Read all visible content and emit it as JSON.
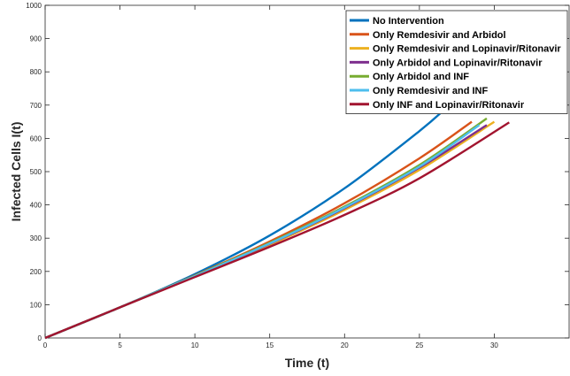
{
  "chart_data": {
    "type": "line",
    "title": "",
    "xlabel": "Time (t)",
    "ylabel": "Infected Cells I(t)",
    "xlim": [
      0,
      35
    ],
    "ylim": [
      0,
      1000
    ],
    "xticks": [
      0,
      5,
      10,
      15,
      20,
      25,
      30
    ],
    "yticks": [
      0,
      100,
      200,
      300,
      400,
      500,
      600,
      700,
      800,
      900,
      1000
    ],
    "grid": false,
    "legend_position": "top-right",
    "series": [
      {
        "name": "No Intervention",
        "color": "#0072BD",
        "x": [
          0,
          5,
          10,
          15,
          20,
          25,
          27
        ],
        "y": [
          0,
          92,
          192,
          308,
          450,
          622,
          700
        ]
      },
      {
        "name": "Only Remdesivir and Arbidol",
        "color": "#D95319",
        "x": [
          0,
          5,
          10,
          15,
          20,
          25,
          28.5
        ],
        "y": [
          0,
          92,
          188,
          290,
          405,
          540,
          650
        ]
      },
      {
        "name": "Only Remdesivir and Lopinavir/Ritonavir",
        "color": "#EDB120",
        "x": [
          0,
          5,
          10,
          15,
          20,
          25,
          30
        ],
        "y": [
          0,
          92,
          185,
          280,
          385,
          505,
          650
        ]
      },
      {
        "name": "Only Arbidol and Lopinavir/Ritonavir",
        "color": "#7E2F8E",
        "x": [
          0,
          5,
          10,
          15,
          20,
          25,
          29.5
        ],
        "y": [
          0,
          92,
          186,
          283,
          390,
          512,
          640
        ]
      },
      {
        "name": "Only Arbidol and INF",
        "color": "#77AC30",
        "x": [
          0,
          5,
          10,
          15,
          20,
          25,
          29.5
        ],
        "y": [
          0,
          92,
          187,
          286,
          395,
          520,
          660
        ]
      },
      {
        "name": "Only Remdesivir and INF",
        "color": "#4DBEEE",
        "x": [
          0,
          5,
          10,
          15,
          20,
          25,
          29
        ],
        "y": [
          0,
          92,
          186,
          284,
          392,
          515,
          640
        ]
      },
      {
        "name": "Only INF and Lopinavir/Ritonavir",
        "color": "#A2142F",
        "x": [
          0,
          5,
          10,
          15,
          20,
          25,
          31
        ],
        "y": [
          0,
          92,
          183,
          274,
          370,
          480,
          648
        ]
      }
    ]
  }
}
